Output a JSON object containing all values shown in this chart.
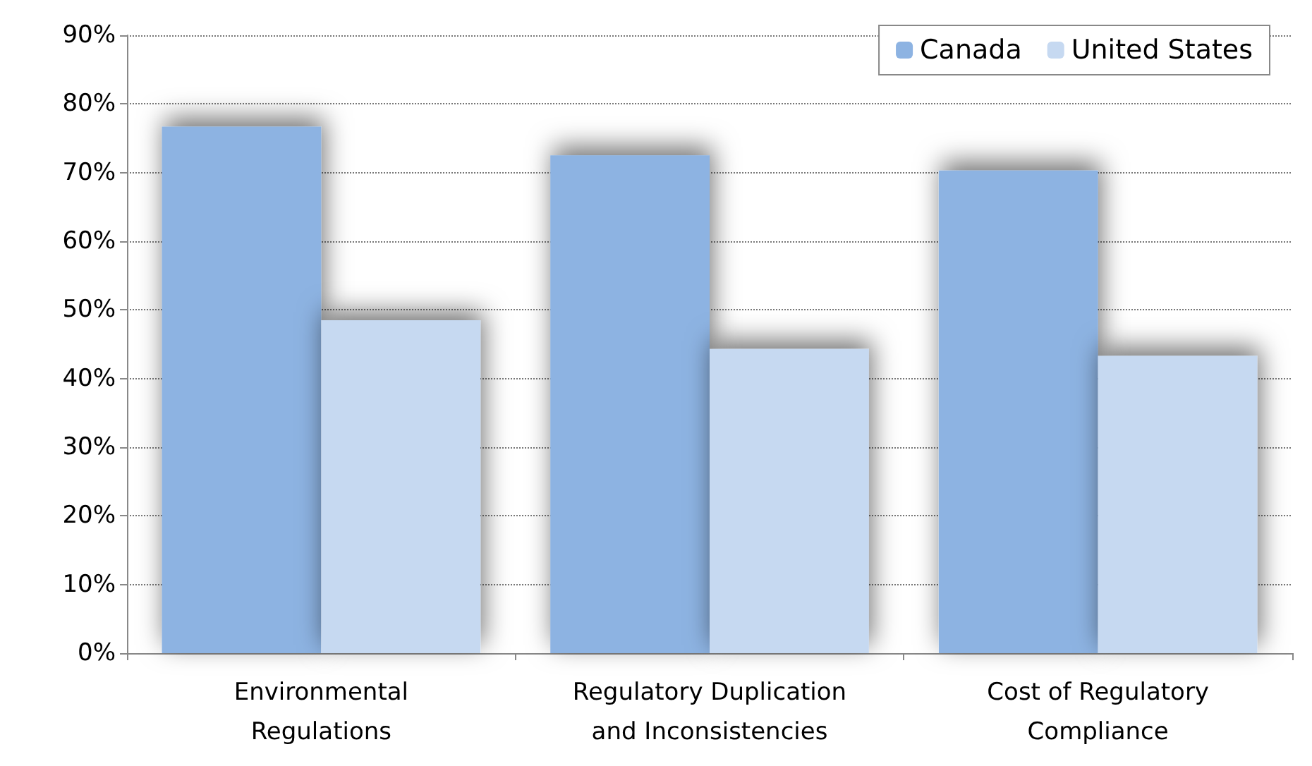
{
  "chart_data": {
    "type": "bar",
    "categories": [
      "Environmental\nRegulations",
      "Regulatory Duplication\nand Inconsistencies",
      "Cost of Regulatory\nCompliance"
    ],
    "series": [
      {
        "name": "Canada",
        "color": "#8db3e2",
        "values": [
          76.7,
          72.5,
          70.3
        ]
      },
      {
        "name": "United States",
        "color": "#c6d9f1",
        "values": [
          48.5,
          44.3,
          43.3
        ]
      }
    ],
    "ylim": [
      0,
      90
    ],
    "yticks": [
      {
        "value": 0,
        "label": "0%"
      },
      {
        "value": 10,
        "label": "10%"
      },
      {
        "value": 20,
        "label": "20%"
      },
      {
        "value": 30,
        "label": "30%"
      },
      {
        "value": 40,
        "label": "40%"
      },
      {
        "value": 50,
        "label": "50%"
      },
      {
        "value": 60,
        "label": "60%"
      },
      {
        "value": 70,
        "label": "70%"
      },
      {
        "value": 80,
        "label": "80%"
      },
      {
        "value": 90,
        "label": "90%"
      }
    ],
    "grid": "y",
    "legend": "top right"
  }
}
